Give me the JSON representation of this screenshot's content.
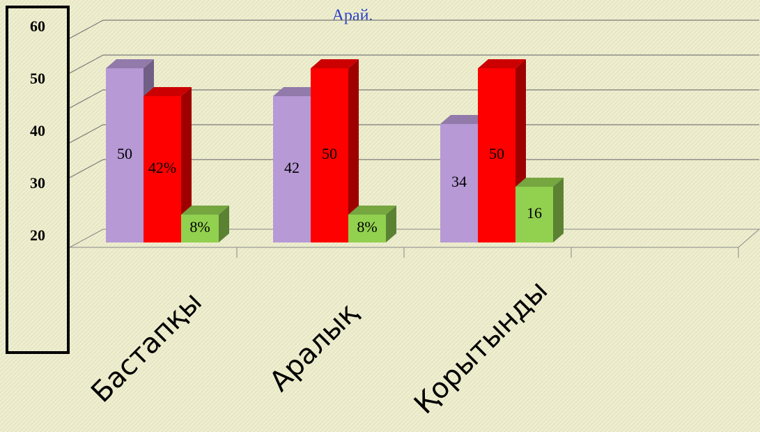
{
  "chart_data": {
    "type": "bar3d",
    "title": "Арай.",
    "categories": [
      "Бастапқы",
      "Аралық",
      "Қорытынды"
    ],
    "series": [
      {
        "color": "#b799d6",
        "values": [
          50,
          42,
          34
        ],
        "value_labels": [
          "50",
          "42",
          "34"
        ]
      },
      {
        "color": "#ff0000",
        "values": [
          42,
          50,
          50
        ],
        "value_labels": [
          "42%",
          "50",
          "50"
        ]
      },
      {
        "color": "#92d050",
        "values": [
          8,
          8,
          16
        ],
        "value_labels": [
          "8%",
          "8%",
          "16"
        ]
      }
    ],
    "ylim": [
      0,
      60
    ],
    "yticks": [
      20,
      30,
      40,
      50,
      60
    ],
    "grid": true
  }
}
